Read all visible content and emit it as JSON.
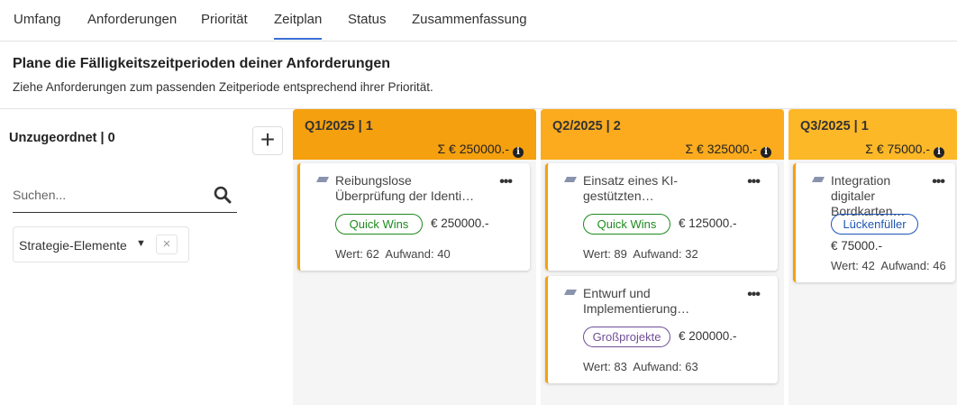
{
  "tabs": [
    "Umfang",
    "Anforderungen",
    "Priorität",
    "Zeitplan",
    "Status",
    "Zusammenfassung"
  ],
  "active_tab": "Zeitplan",
  "header": {
    "title": "Plane die Fälligkeitszeitperioden deiner Anforderungen",
    "subtitle": "Ziehe Anforderungen zum passenden Zeitperiode entsprechend ihrer Priorität."
  },
  "unassigned": {
    "label": "Unzugeordnet | 0",
    "add_icon": "plus-icon",
    "search_placeholder": "Suchen...",
    "filter_label": "Strategie-Elemente",
    "filter_clear": "×"
  },
  "colors": {
    "q1": "#f5a00f",
    "q2": "#fbab1d",
    "q3": "#fdb827",
    "card_border": "#f5a00f",
    "quick_wins": "#1e8a1e",
    "lueckenfueller": "#1f55b5",
    "grossprojekte": "#6e4e96"
  },
  "columns": [
    {
      "title": "Q1/2025 | 1",
      "sum": "Σ € 250000.-",
      "cards": [
        {
          "name": "Reibungslose Überprüfung der Identi…",
          "badge": "Quick Wins",
          "amount": "€ 250000.-",
          "meta": "Wert: 62  Aufwand: 40"
        }
      ]
    },
    {
      "title": "Q2/2025 | 2",
      "sum": "Σ € 325000.-",
      "cards": [
        {
          "name": "Einsatz eines KI-gestützten…",
          "badge": "Quick Wins",
          "amount": "€ 125000.-",
          "meta": "Wert: 89  Aufwand: 32"
        },
        {
          "name": "Entwurf und Implementierung…",
          "badge": "Großprojekte",
          "amount": "€ 200000.-",
          "meta": "Wert: 83  Aufwand: 63"
        }
      ]
    },
    {
      "title": "Q3/2025 | 1",
      "sum": "Σ € 75000.-",
      "cards": [
        {
          "name": "Integration digitaler Bordkarten…",
          "badge": "Lückenfüller",
          "amount": "€ 75000.-",
          "meta": "Wert: 42  Aufwand: 46"
        }
      ]
    }
  ]
}
